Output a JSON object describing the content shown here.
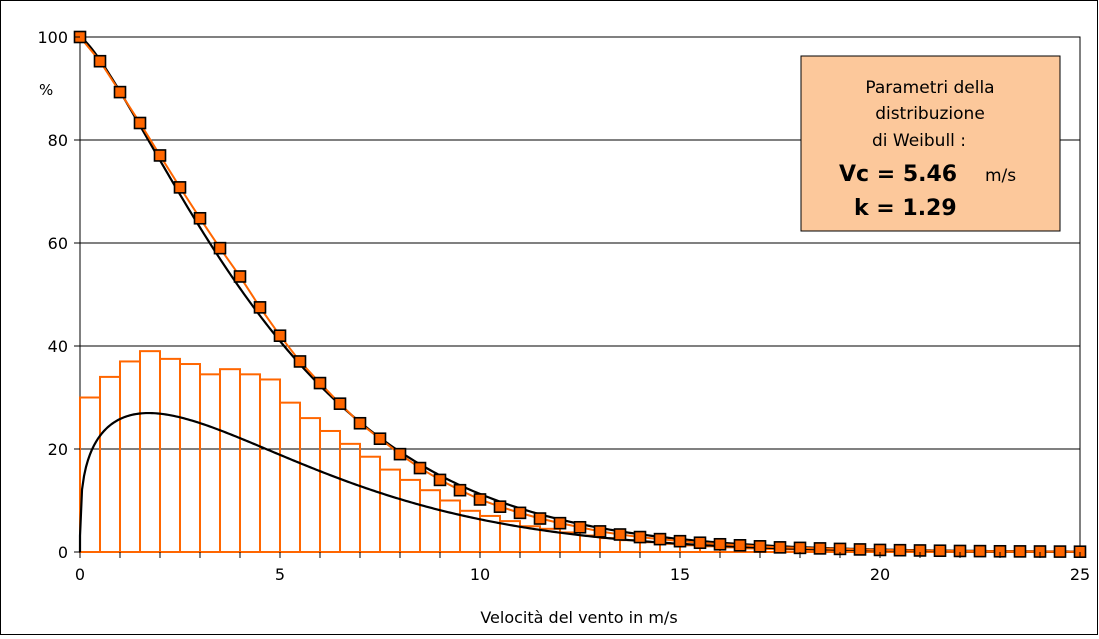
{
  "chart_data": {
    "type": "bar",
    "xlabel": "Velocità del vento in m/s",
    "ylabel": "%",
    "xlim": [
      0,
      25
    ],
    "ylim": [
      0,
      100
    ],
    "x_ticks": [
      0,
      5,
      10,
      15,
      20,
      25
    ],
    "y_ticks": [
      0,
      20,
      40,
      60,
      80,
      100
    ],
    "grid": {
      "horizontal": true,
      "vertical": false
    },
    "info_box": {
      "line1": "Parametri della",
      "line2": "distribuzione",
      "line3": "di Weibull :",
      "vc_label": "Vc = 5.46",
      "vc_unit": "m/s",
      "k_label": "k = 1.29"
    },
    "histogram": {
      "bin_width": 0.5,
      "color": "#ff6600",
      "values": [
        30,
        34,
        37,
        39,
        37.5,
        36.5,
        34.5,
        35.5,
        34.5,
        33.5,
        29,
        26,
        23.5,
        21,
        18.5,
        16,
        14,
        12,
        10,
        8,
        7,
        6,
        5,
        4.5,
        3.8,
        3.2,
        2.7,
        2.3,
        1.9,
        1.6,
        1.3,
        1.1,
        0.9,
        0.7,
        0.6,
        0.5,
        0.4,
        0.3,
        0.25,
        0.2,
        0.15,
        0.12,
        0.1,
        0.08,
        0.06,
        0.05,
        0.04,
        0.03,
        0.02,
        0.01
      ]
    },
    "weibull_density": {
      "vc": 5.46,
      "k": 1.29,
      "color": "#000000"
    },
    "series": [
      {
        "type": "line-markers",
        "color": "#ff6600",
        "marker_fill": "#ff6600",
        "x": [
          0,
          0.5,
          1,
          1.5,
          2,
          2.5,
          3,
          3.5,
          4,
          4.5,
          5,
          5.5,
          6,
          6.5,
          7,
          7.5,
          8,
          8.5,
          9,
          9.5,
          10,
          10.5,
          11,
          11.5,
          12,
          12.5,
          13,
          13.5,
          14,
          14.5,
          15,
          15.5,
          16,
          16.5,
          17,
          17.5,
          18,
          18.5,
          19,
          19.5,
          20,
          20.5,
          21,
          21.5,
          22,
          22.5,
          23,
          23.5,
          24,
          24.5,
          25
        ],
        "values": [
          100,
          95.3,
          89.3,
          83.3,
          77,
          70.8,
          64.8,
          59,
          53.5,
          47.5,
          42,
          37,
          32.8,
          28.8,
          25,
          22,
          19,
          16.3,
          14,
          12,
          10.2,
          8.8,
          7.6,
          6.5,
          5.6,
          4.8,
          4.0,
          3.4,
          2.9,
          2.5,
          2.1,
          1.8,
          1.5,
          1.3,
          1.1,
          0.9,
          0.8,
          0.7,
          0.6,
          0.5,
          0.4,
          0.35,
          0.3,
          0.25,
          0.2,
          0.17,
          0.14,
          0.12,
          0.1,
          0.08,
          0.06
        ]
      }
    ]
  }
}
